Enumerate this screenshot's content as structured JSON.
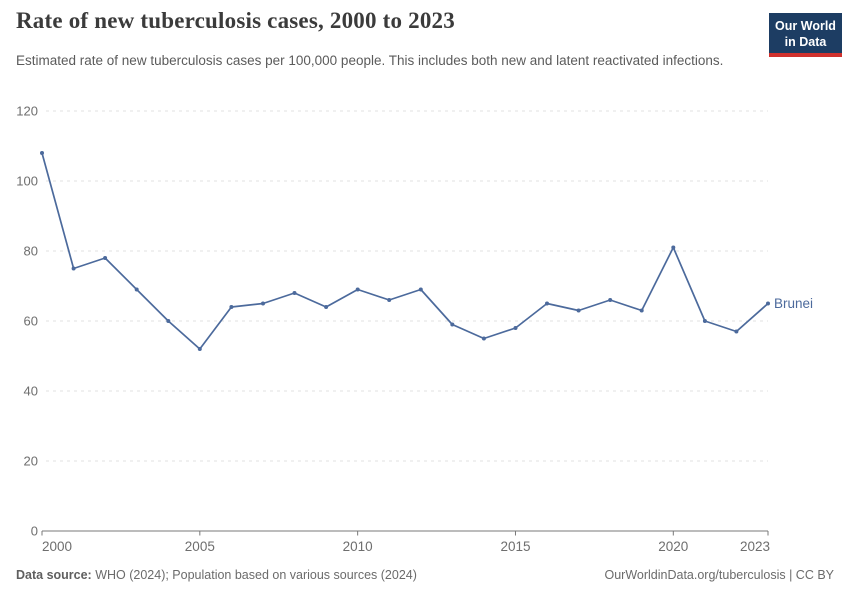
{
  "header": {
    "title": "Rate of new tuberculosis cases, 2000 to 2023",
    "subtitle": "Estimated rate of new tuberculosis cases per 100,000 people. This includes both new and latent reactivated infections.",
    "logo": {
      "line1": "Our World",
      "line2": "in Data",
      "bg_color": "#1d3d63",
      "accent_color": "#d0312d"
    }
  },
  "chart_data": {
    "type": "line",
    "title": "Rate of new tuberculosis cases, 2000 to 2023",
    "xlabel": "",
    "ylabel": "",
    "x": [
      2000,
      2001,
      2002,
      2003,
      2004,
      2005,
      2006,
      2007,
      2008,
      2009,
      2010,
      2011,
      2012,
      2013,
      2014,
      2015,
      2016,
      2017,
      2018,
      2019,
      2020,
      2021,
      2022,
      2023
    ],
    "series": [
      {
        "name": "Brunei",
        "color": "#4c6a9c",
        "values": [
          108,
          75,
          78,
          69,
          60,
          52,
          64,
          65,
          68,
          64,
          69,
          66,
          69,
          59,
          55,
          58,
          65,
          63,
          66,
          63,
          81,
          60,
          57,
          65
        ]
      }
    ],
    "x_ticks": [
      2000,
      2005,
      2010,
      2015,
      2020,
      2023
    ],
    "y_ticks": [
      0,
      20,
      40,
      60,
      80,
      100,
      120
    ],
    "xlim": [
      2000,
      2023
    ],
    "ylim": [
      0,
      120
    ],
    "grid": "horizontal-dashed",
    "legend": "end-of-line-label"
  },
  "chart_style": {
    "grid_color": "#e0e0e0",
    "axis_color": "#787878",
    "tick_label_color": "#6e6e6e"
  },
  "footer": {
    "datasource_label": "Data source:",
    "datasource_text": " WHO (2024); Population based on various sources (2024)",
    "credit": "OurWorldinData.org/tuberculosis | CC BY"
  }
}
